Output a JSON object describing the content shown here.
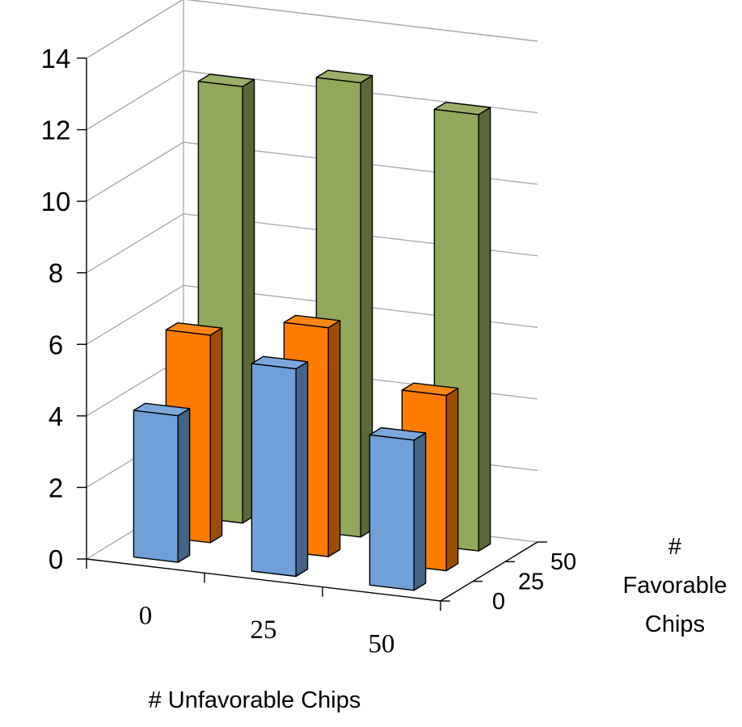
{
  "chart_data": {
    "type": "bar",
    "subtype": "3d-column",
    "x_axis": {
      "label": "# Unfavorable Chips",
      "categories": [
        "0",
        "25",
        "50"
      ]
    },
    "depth_axis": {
      "label_lines": [
        "#",
        "Favorable",
        "Chips"
      ],
      "categories": [
        "0",
        "25",
        "50"
      ]
    },
    "y_axis": {
      "ticks": [
        "0",
        "2",
        "4",
        "6",
        "8",
        "10",
        "12",
        "14"
      ],
      "ylim": [
        0,
        14
      ]
    },
    "grid": true,
    "series": [
      {
        "depth": "0",
        "color": "#6fa1d9",
        "values": [
          4.1,
          5.8,
          4.2
        ]
      },
      {
        "depth": "25",
        "color": "#ff7c00",
        "values": [
          5.8,
          6.4,
          4.9
        ]
      },
      {
        "depth": "50",
        "color": "#92a85a",
        "values": [
          12.2,
          12.7,
          12.2
        ]
      }
    ]
  }
}
